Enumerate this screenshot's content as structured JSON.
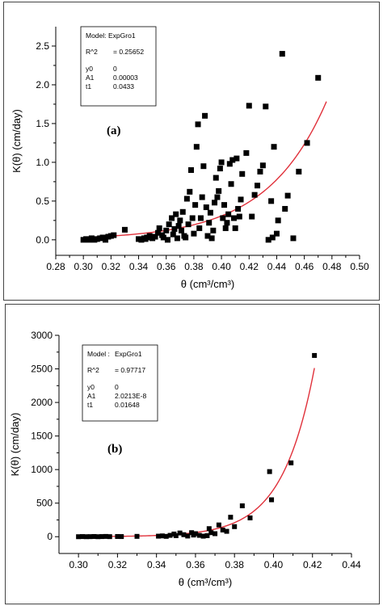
{
  "chart_data": [
    {
      "type": "scatter",
      "panel_tag": "(a)",
      "xlabel": "θ (cm³/cm³)",
      "ylabel": "K(θ) (cm/day)",
      "xlim": [
        0.28,
        0.5
      ],
      "ylim": [
        -0.2,
        2.75
      ],
      "xticks": [
        "0.28",
        "0.30",
        "0.32",
        "0.34",
        "0.36",
        "0.38",
        "0.40",
        "0.42",
        "0.44",
        "0.46",
        "0.48",
        "0.50"
      ],
      "yticks": [
        "0.0",
        "0.5",
        "1.0",
        "1.5",
        "2.0",
        "2.5"
      ],
      "grid": false,
      "fit_box": {
        "model_label": "Model:",
        "model_value": "ExpGro1",
        "r2_label": "R^2",
        "r2_value": "= 0.25652",
        "params": [
          {
            "name": "y0",
            "value": "0"
          },
          {
            "name": "A1",
            "value": "0.00003"
          },
          {
            "name": "t1",
            "value": "0.0433"
          }
        ]
      },
      "fit": {
        "y0": 0,
        "A1": 3e-05,
        "t1": 0.0433,
        "x_range": [
          0.3,
          0.476
        ],
        "color": "#e0303a"
      },
      "marker_color": "#000000",
      "points": [
        [
          0.3,
          0.0
        ],
        [
          0.302,
          0.01
        ],
        [
          0.304,
          0.0
        ],
        [
          0.306,
          0.02
        ],
        [
          0.308,
          0.0
        ],
        [
          0.31,
          0.01
        ],
        [
          0.312,
          0.02
        ],
        [
          0.314,
          0.03
        ],
        [
          0.316,
          0.0
        ],
        [
          0.318,
          0.04
        ],
        [
          0.32,
          0.05
        ],
        [
          0.322,
          0.06
        ],
        [
          0.33,
          0.13
        ],
        [
          0.34,
          0.01
        ],
        [
          0.342,
          0.0
        ],
        [
          0.344,
          0.02
        ],
        [
          0.345,
          0.01
        ],
        [
          0.346,
          0.03
        ],
        [
          0.348,
          0.05
        ],
        [
          0.35,
          0.02
        ],
        [
          0.352,
          0.04
        ],
        [
          0.354,
          0.09
        ],
        [
          0.355,
          0.15
        ],
        [
          0.357,
          0.06
        ],
        [
          0.358,
          0.03
        ],
        [
          0.36,
          0.12
        ],
        [
          0.361,
          0.0
        ],
        [
          0.362,
          0.2
        ],
        [
          0.364,
          0.28
        ],
        [
          0.365,
          0.07
        ],
        [
          0.366,
          0.14
        ],
        [
          0.367,
          0.33
        ],
        [
          0.368,
          0.02
        ],
        [
          0.369,
          0.18
        ],
        [
          0.37,
          0.25
        ],
        [
          0.371,
          0.12
        ],
        [
          0.372,
          0.36
        ],
        [
          0.373,
          0.05
        ],
        [
          0.374,
          0.03
        ],
        [
          0.375,
          0.53
        ],
        [
          0.376,
          0.2
        ],
        [
          0.377,
          0.62
        ],
        [
          0.378,
          0.9
        ],
        [
          0.379,
          0.28
        ],
        [
          0.38,
          0.08
        ],
        [
          0.381,
          0.45
        ],
        [
          0.382,
          1.2
        ],
        [
          0.383,
          1.49
        ],
        [
          0.384,
          0.15
        ],
        [
          0.385,
          0.28
        ],
        [
          0.386,
          0.55
        ],
        [
          0.387,
          0.95
        ],
        [
          0.388,
          1.6
        ],
        [
          0.389,
          0.42
        ],
        [
          0.39,
          0.05
        ],
        [
          0.391,
          0.22
        ],
        [
          0.392,
          0.35
        ],
        [
          0.393,
          0.02
        ],
        [
          0.394,
          0.12
        ],
        [
          0.395,
          0.48
        ],
        [
          0.396,
          0.8
        ],
        [
          0.397,
          0.55
        ],
        [
          0.398,
          0.63
        ],
        [
          0.399,
          0.92
        ],
        [
          0.4,
          1.0
        ],
        [
          0.401,
          0.28
        ],
        [
          0.402,
          0.45
        ],
        [
          0.403,
          0.15
        ],
        [
          0.404,
          0.22
        ],
        [
          0.405,
          0.33
        ],
        [
          0.406,
          0.98
        ],
        [
          0.407,
          0.72
        ],
        [
          0.408,
          1.03
        ],
        [
          0.409,
          0.28
        ],
        [
          0.41,
          0.15
        ],
        [
          0.411,
          1.05
        ],
        [
          0.412,
          0.4
        ],
        [
          0.413,
          0.3
        ],
        [
          0.414,
          0.52
        ],
        [
          0.415,
          0.85
        ],
        [
          0.418,
          1.12
        ],
        [
          0.42,
          1.73
        ],
        [
          0.422,
          0.3
        ],
        [
          0.424,
          0.58
        ],
        [
          0.426,
          0.7
        ],
        [
          0.428,
          0.88
        ],
        [
          0.43,
          0.96
        ],
        [
          0.432,
          1.72
        ],
        [
          0.434,
          0.0
        ],
        [
          0.436,
          0.5
        ],
        [
          0.437,
          0.03
        ],
        [
          0.438,
          1.2
        ],
        [
          0.44,
          0.08
        ],
        [
          0.441,
          0.25
        ],
        [
          0.444,
          2.4
        ],
        [
          0.446,
          0.4
        ],
        [
          0.448,
          0.57
        ],
        [
          0.452,
          0.02
        ],
        [
          0.456,
          0.88
        ],
        [
          0.462,
          1.25
        ],
        [
          0.47,
          2.09
        ]
      ]
    },
    {
      "type": "scatter",
      "panel_tag": "(b)",
      "xlabel": "θ (cm³/cm³)",
      "ylabel": "K(θ) (cm/day)",
      "xlim": [
        0.29,
        0.44
      ],
      "ylim": [
        -250,
        3000
      ],
      "xticks": [
        "0.30",
        "0.32",
        "0.34",
        "0.36",
        "0.38",
        "0.40",
        "0.42",
        "0.44"
      ],
      "yticks": [
        "0",
        "500",
        "1000",
        "1500",
        "2000",
        "2500",
        "3000"
      ],
      "grid": false,
      "fit_box": {
        "model_label": "Model :",
        "model_value": "ExpGro1",
        "r2_label": "R^2",
        "r2_value": "= 0.97717",
        "params": [
          {
            "name": "y0",
            "value": "0"
          },
          {
            "name": "A1",
            "value": "2.0213E-8"
          },
          {
            "name": "t1",
            "value": "0.01648"
          }
        ]
      },
      "fit": {
        "y0": 0,
        "A1": 2.0213e-08,
        "t1": 0.01648,
        "x_range": [
          0.3,
          0.421
        ],
        "color": "#e0303a"
      },
      "marker_color": "#000000",
      "points": [
        [
          0.3,
          0
        ],
        [
          0.302,
          2
        ],
        [
          0.304,
          0
        ],
        [
          0.306,
          1
        ],
        [
          0.308,
          3
        ],
        [
          0.31,
          0
        ],
        [
          0.312,
          2
        ],
        [
          0.314,
          4
        ],
        [
          0.316,
          1
        ],
        [
          0.32,
          3
        ],
        [
          0.322,
          2
        ],
        [
          0.33,
          5
        ],
        [
          0.341,
          8
        ],
        [
          0.343,
          12
        ],
        [
          0.345,
          5
        ],
        [
          0.347,
          20
        ],
        [
          0.349,
          40
        ],
        [
          0.35,
          15
        ],
        [
          0.352,
          55
        ],
        [
          0.354,
          30
        ],
        [
          0.356,
          10
        ],
        [
          0.358,
          60
        ],
        [
          0.359,
          25
        ],
        [
          0.36,
          45
        ],
        [
          0.362,
          20
        ],
        [
          0.364,
          8
        ],
        [
          0.366,
          15
        ],
        [
          0.367,
          120
        ],
        [
          0.368,
          60
        ],
        [
          0.37,
          45
        ],
        [
          0.372,
          175
        ],
        [
          0.374,
          100
        ],
        [
          0.376,
          80
        ],
        [
          0.378,
          290
        ],
        [
          0.38,
          150
        ],
        [
          0.384,
          460
        ],
        [
          0.388,
          280
        ],
        [
          0.398,
          970
        ],
        [
          0.399,
          550
        ],
        [
          0.409,
          1100
        ],
        [
          0.421,
          2700
        ]
      ]
    }
  ]
}
